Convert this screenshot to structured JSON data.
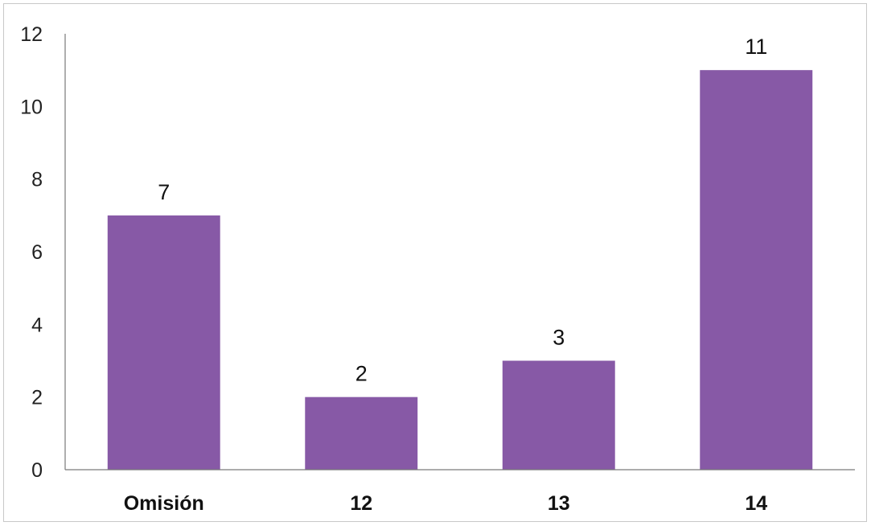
{
  "chart_data": {
    "type": "bar",
    "title": "",
    "xlabel": "",
    "ylabel": "",
    "categories": [
      "Omisión",
      "12",
      "13",
      "14"
    ],
    "values": [
      7,
      2,
      3,
      11
    ],
    "data_labels": [
      "7",
      "2",
      "3",
      "11"
    ],
    "ylim": [
      0,
      12
    ],
    "yticks": [
      0,
      2,
      4,
      6,
      8,
      10,
      12
    ],
    "ytick_labels": [
      "0",
      "2",
      "4",
      "6",
      "8",
      "10",
      "12"
    ],
    "grid": false,
    "legend": "none",
    "bar_color": "#8759a6"
  }
}
